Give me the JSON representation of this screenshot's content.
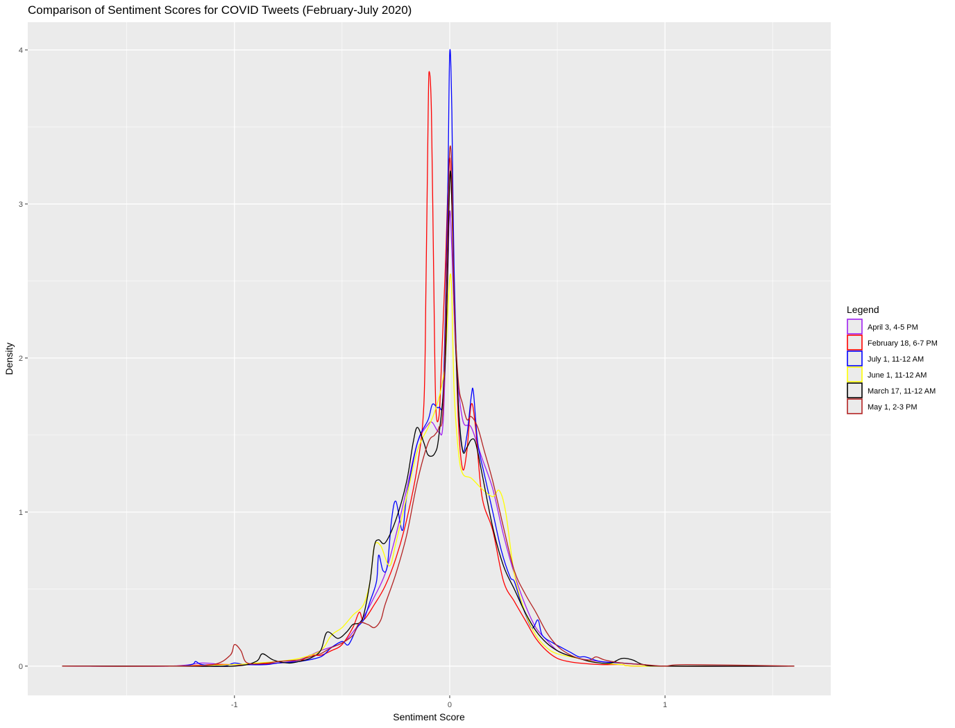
{
  "chart_data": {
    "type": "line",
    "title": "Comparison of Sentiment Scores for COVID Tweets (February-July 2020)",
    "xlabel": "Sentiment Score",
    "ylabel": "Density",
    "xlim": [
      -1.96,
      1.77
    ],
    "ylim": [
      -0.19,
      4.18
    ],
    "x_ticks": [
      -1,
      0,
      1
    ],
    "x_tick_labels": [
      "-1",
      "0",
      "1"
    ],
    "y_ticks": [
      0,
      1,
      2,
      3,
      4
    ],
    "y_tick_labels": [
      "0",
      "1",
      "2",
      "3",
      "4"
    ],
    "background": "#ebebeb",
    "grid": true,
    "grid_color": "#ffffff",
    "legend": {
      "title": "Legend",
      "placement": "right",
      "entries": [
        {
          "label": "April 3, 4-5 PM",
          "color": "#a020f0"
        },
        {
          "label": "February 18, 6-7 PM",
          "color": "#ff0000"
        },
        {
          "label": "July 1, 11-12 AM",
          "color": "#0000ff"
        },
        {
          "label": "June 1, 11-12 AM",
          "color": "#ffff00"
        },
        {
          "label": "March 17, 11-12 AM",
          "color": "#000000"
        },
        {
          "label": "May 1, 2-3 PM",
          "color": "#b22222"
        }
      ]
    },
    "series": [
      {
        "name": "April 3, 4-5 PM",
        "color": "#a020f0",
        "points": [
          [
            -1.8,
            0
          ],
          [
            -1.3,
            0
          ],
          [
            -1.15,
            0.02
          ],
          [
            -1.05,
            0.01
          ],
          [
            -0.9,
            0.01
          ],
          [
            -0.8,
            0.02
          ],
          [
            -0.7,
            0.04
          ],
          [
            -0.6,
            0.1
          ],
          [
            -0.5,
            0.15
          ],
          [
            -0.45,
            0.22
          ],
          [
            -0.4,
            0.32
          ],
          [
            -0.35,
            0.45
          ],
          [
            -0.3,
            0.6
          ],
          [
            -0.25,
            0.85
          ],
          [
            -0.2,
            1.15
          ],
          [
            -0.15,
            1.45
          ],
          [
            -0.1,
            1.57
          ],
          [
            -0.08,
            1.58
          ],
          [
            -0.05,
            1.52
          ],
          [
            -0.03,
            1.6
          ],
          [
            -0.01,
            2.5
          ],
          [
            0,
            2.95
          ],
          [
            0.01,
            2.7
          ],
          [
            0.03,
            2.0
          ],
          [
            0.06,
            1.6
          ],
          [
            0.1,
            1.55
          ],
          [
            0.15,
            1.35
          ],
          [
            0.2,
            1.15
          ],
          [
            0.25,
            0.85
          ],
          [
            0.3,
            0.6
          ],
          [
            0.35,
            0.4
          ],
          [
            0.4,
            0.25
          ],
          [
            0.45,
            0.17
          ],
          [
            0.5,
            0.1
          ],
          [
            0.55,
            0.07
          ],
          [
            0.6,
            0.05
          ],
          [
            0.7,
            0.03
          ],
          [
            0.8,
            0.02
          ],
          [
            0.9,
            0.01
          ],
          [
            1.0,
            0
          ],
          [
            1.6,
            0
          ]
        ]
      },
      {
        "name": "February 18, 6-7 PM",
        "color": "#ff0000",
        "points": [
          [
            -1.8,
            0
          ],
          [
            -1.3,
            0
          ],
          [
            -1.1,
            0.01
          ],
          [
            -1.0,
            0.01
          ],
          [
            -0.9,
            0.01
          ],
          [
            -0.8,
            0.02
          ],
          [
            -0.7,
            0.03
          ],
          [
            -0.65,
            0.07
          ],
          [
            -0.6,
            0.07
          ],
          [
            -0.55,
            0.1
          ],
          [
            -0.5,
            0.14
          ],
          [
            -0.45,
            0.25
          ],
          [
            -0.42,
            0.35
          ],
          [
            -0.4,
            0.3
          ],
          [
            -0.35,
            0.4
          ],
          [
            -0.3,
            0.52
          ],
          [
            -0.25,
            0.7
          ],
          [
            -0.2,
            0.95
          ],
          [
            -0.15,
            1.3
          ],
          [
            -0.12,
            1.7
          ],
          [
            -0.11,
            2.5
          ],
          [
            -0.1,
            3.6
          ],
          [
            -0.095,
            3.86
          ],
          [
            -0.085,
            3.6
          ],
          [
            -0.075,
            2.6
          ],
          [
            -0.065,
            1.7
          ],
          [
            -0.05,
            1.62
          ],
          [
            -0.04,
            1.9
          ],
          [
            -0.02,
            2.6
          ],
          [
            0,
            3.3
          ],
          [
            0.02,
            2.5
          ],
          [
            0.04,
            1.6
          ],
          [
            0.06,
            1.28
          ],
          [
            0.08,
            1.4
          ],
          [
            0.1,
            1.7
          ],
          [
            0.12,
            1.55
          ],
          [
            0.15,
            1.1
          ],
          [
            0.2,
            0.88
          ],
          [
            0.25,
            0.55
          ],
          [
            0.3,
            0.42
          ],
          [
            0.35,
            0.3
          ],
          [
            0.4,
            0.18
          ],
          [
            0.45,
            0.1
          ],
          [
            0.5,
            0.05
          ],
          [
            0.55,
            0.03
          ],
          [
            0.6,
            0.02
          ],
          [
            0.7,
            0.01
          ],
          [
            0.8,
            0.01
          ],
          [
            0.9,
            0
          ],
          [
            1.6,
            0
          ]
        ]
      },
      {
        "name": "July 1, 11-12 AM",
        "color": "#0000ff",
        "points": [
          [
            -1.8,
            0
          ],
          [
            -1.3,
            0
          ],
          [
            -1.2,
            0.01
          ],
          [
            -1.18,
            0.03
          ],
          [
            -1.15,
            0.01
          ],
          [
            -1.05,
            0
          ],
          [
            -1.0,
            0.02
          ],
          [
            -0.95,
            0.01
          ],
          [
            -0.85,
            0.01
          ],
          [
            -0.8,
            0.02
          ],
          [
            -0.7,
            0.03
          ],
          [
            -0.6,
            0.06
          ],
          [
            -0.55,
            0.12
          ],
          [
            -0.5,
            0.16
          ],
          [
            -0.47,
            0.14
          ],
          [
            -0.43,
            0.25
          ],
          [
            -0.4,
            0.3
          ],
          [
            -0.37,
            0.42
          ],
          [
            -0.34,
            0.55
          ],
          [
            -0.33,
            0.72
          ],
          [
            -0.31,
            0.62
          ],
          [
            -0.29,
            0.65
          ],
          [
            -0.27,
            0.95
          ],
          [
            -0.25,
            1.07
          ],
          [
            -0.22,
            0.88
          ],
          [
            -0.2,
            1.1
          ],
          [
            -0.15,
            1.45
          ],
          [
            -0.1,
            1.6
          ],
          [
            -0.08,
            1.7
          ],
          [
            -0.05,
            1.68
          ],
          [
            -0.03,
            1.8
          ],
          [
            -0.01,
            3.0
          ],
          [
            0,
            3.98
          ],
          [
            0.01,
            3.6
          ],
          [
            0.02,
            2.6
          ],
          [
            0.04,
            1.7
          ],
          [
            0.06,
            1.4
          ],
          [
            0.08,
            1.5
          ],
          [
            0.1,
            1.75
          ],
          [
            0.11,
            1.78
          ],
          [
            0.13,
            1.45
          ],
          [
            0.16,
            1.25
          ],
          [
            0.2,
            1.0
          ],
          [
            0.24,
            0.75
          ],
          [
            0.28,
            0.58
          ],
          [
            0.3,
            0.55
          ],
          [
            0.33,
            0.42
          ],
          [
            0.38,
            0.25
          ],
          [
            0.41,
            0.3
          ],
          [
            0.43,
            0.2
          ],
          [
            0.48,
            0.15
          ],
          [
            0.52,
            0.12
          ],
          [
            0.56,
            0.09
          ],
          [
            0.6,
            0.06
          ],
          [
            0.63,
            0.06
          ],
          [
            0.7,
            0.03
          ],
          [
            0.8,
            0.02
          ],
          [
            0.9,
            0.01
          ],
          [
            1.0,
            0
          ],
          [
            1.6,
            0
          ]
        ]
      },
      {
        "name": "June 1, 11-12 AM",
        "color": "#ffff00",
        "points": [
          [
            -1.8,
            0
          ],
          [
            -1.3,
            0
          ],
          [
            -1.0,
            0.01
          ],
          [
            -0.9,
            0.02
          ],
          [
            -0.8,
            0.03
          ],
          [
            -0.7,
            0.05
          ],
          [
            -0.6,
            0.1
          ],
          [
            -0.55,
            0.2
          ],
          [
            -0.5,
            0.25
          ],
          [
            -0.45,
            0.33
          ],
          [
            -0.4,
            0.4
          ],
          [
            -0.37,
            0.55
          ],
          [
            -0.35,
            0.78
          ],
          [
            -0.32,
            0.78
          ],
          [
            -0.28,
            0.65
          ],
          [
            -0.25,
            0.8
          ],
          [
            -0.2,
            1.1
          ],
          [
            -0.15,
            1.4
          ],
          [
            -0.1,
            1.55
          ],
          [
            -0.07,
            1.65
          ],
          [
            -0.04,
            1.8
          ],
          [
            -0.02,
            2.0
          ],
          [
            0,
            2.52
          ],
          [
            0.01,
            2.4
          ],
          [
            0.02,
            1.8
          ],
          [
            0.04,
            1.4
          ],
          [
            0.06,
            1.25
          ],
          [
            0.1,
            1.22
          ],
          [
            0.15,
            1.15
          ],
          [
            0.2,
            1.1
          ],
          [
            0.23,
            1.14
          ],
          [
            0.26,
            1.0
          ],
          [
            0.3,
            0.6
          ],
          [
            0.35,
            0.35
          ],
          [
            0.4,
            0.2
          ],
          [
            0.45,
            0.12
          ],
          [
            0.5,
            0.08
          ],
          [
            0.6,
            0.05
          ],
          [
            0.7,
            0.02
          ],
          [
            0.8,
            0.01
          ],
          [
            0.9,
            0
          ],
          [
            1.6,
            0
          ]
        ]
      },
      {
        "name": "March 17, 11-12 AM",
        "color": "#000000",
        "points": [
          [
            -1.8,
            0
          ],
          [
            -1.3,
            0
          ],
          [
            -1.0,
            0
          ],
          [
            -0.9,
            0.03
          ],
          [
            -0.87,
            0.08
          ],
          [
            -0.82,
            0.04
          ],
          [
            -0.75,
            0.02
          ],
          [
            -0.7,
            0.03
          ],
          [
            -0.65,
            0.05
          ],
          [
            -0.6,
            0.1
          ],
          [
            -0.57,
            0.22
          ],
          [
            -0.52,
            0.18
          ],
          [
            -0.48,
            0.22
          ],
          [
            -0.45,
            0.27
          ],
          [
            -0.42,
            0.28
          ],
          [
            -0.4,
            0.33
          ],
          [
            -0.37,
            0.55
          ],
          [
            -0.35,
            0.78
          ],
          [
            -0.33,
            0.82
          ],
          [
            -0.3,
            0.8
          ],
          [
            -0.25,
            0.95
          ],
          [
            -0.2,
            1.2
          ],
          [
            -0.17,
            1.45
          ],
          [
            -0.15,
            1.55
          ],
          [
            -0.12,
            1.45
          ],
          [
            -0.1,
            1.37
          ],
          [
            -0.07,
            1.38
          ],
          [
            -0.05,
            1.5
          ],
          [
            -0.02,
            2.0
          ],
          [
            0,
            3.15
          ],
          [
            0.01,
            3.0
          ],
          [
            0.02,
            2.4
          ],
          [
            0.04,
            1.7
          ],
          [
            0.06,
            1.4
          ],
          [
            0.08,
            1.42
          ],
          [
            0.1,
            1.47
          ],
          [
            0.12,
            1.45
          ],
          [
            0.15,
            1.25
          ],
          [
            0.2,
            0.9
          ],
          [
            0.25,
            0.65
          ],
          [
            0.3,
            0.5
          ],
          [
            0.35,
            0.35
          ],
          [
            0.4,
            0.23
          ],
          [
            0.45,
            0.15
          ],
          [
            0.5,
            0.1
          ],
          [
            0.55,
            0.07
          ],
          [
            0.6,
            0.05
          ],
          [
            0.65,
            0.03
          ],
          [
            0.7,
            0.02
          ],
          [
            0.75,
            0.02
          ],
          [
            0.8,
            0.05
          ],
          [
            0.85,
            0.04
          ],
          [
            0.9,
            0.01
          ],
          [
            1.0,
            0
          ],
          [
            1.6,
            0
          ]
        ]
      },
      {
        "name": "May 1, 2-3 PM",
        "color": "#b22222",
        "points": [
          [
            -1.8,
            0
          ],
          [
            -1.3,
            0
          ],
          [
            -1.1,
            0.01
          ],
          [
            -1.02,
            0.07
          ],
          [
            -1.0,
            0.14
          ],
          [
            -0.97,
            0.1
          ],
          [
            -0.94,
            0.02
          ],
          [
            -0.85,
            0.02
          ],
          [
            -0.8,
            0.03
          ],
          [
            -0.7,
            0.04
          ],
          [
            -0.65,
            0.06
          ],
          [
            -0.6,
            0.08
          ],
          [
            -0.55,
            0.12
          ],
          [
            -0.5,
            0.15
          ],
          [
            -0.45,
            0.2
          ],
          [
            -0.42,
            0.28
          ],
          [
            -0.38,
            0.27
          ],
          [
            -0.35,
            0.25
          ],
          [
            -0.32,
            0.3
          ],
          [
            -0.3,
            0.4
          ],
          [
            -0.25,
            0.6
          ],
          [
            -0.2,
            0.85
          ],
          [
            -0.15,
            1.2
          ],
          [
            -0.1,
            1.45
          ],
          [
            -0.07,
            1.5
          ],
          [
            -0.05,
            1.55
          ],
          [
            -0.03,
            1.7
          ],
          [
            -0.01,
            2.8
          ],
          [
            0,
            3.35
          ],
          [
            0.01,
            3.2
          ],
          [
            0.02,
            2.4
          ],
          [
            0.04,
            1.85
          ],
          [
            0.06,
            1.7
          ],
          [
            0.08,
            1.6
          ],
          [
            0.1,
            1.62
          ],
          [
            0.13,
            1.55
          ],
          [
            0.16,
            1.4
          ],
          [
            0.2,
            1.2
          ],
          [
            0.25,
            0.9
          ],
          [
            0.3,
            0.62
          ],
          [
            0.35,
            0.47
          ],
          [
            0.4,
            0.35
          ],
          [
            0.45,
            0.22
          ],
          [
            0.5,
            0.13
          ],
          [
            0.55,
            0.08
          ],
          [
            0.6,
            0.05
          ],
          [
            0.65,
            0.04
          ],
          [
            0.68,
            0.06
          ],
          [
            0.72,
            0.04
          ],
          [
            0.8,
            0.02
          ],
          [
            0.9,
            0.01
          ],
          [
            1.0,
            0
          ],
          [
            1.1,
            0.01
          ],
          [
            1.6,
            0
          ]
        ]
      }
    ]
  }
}
